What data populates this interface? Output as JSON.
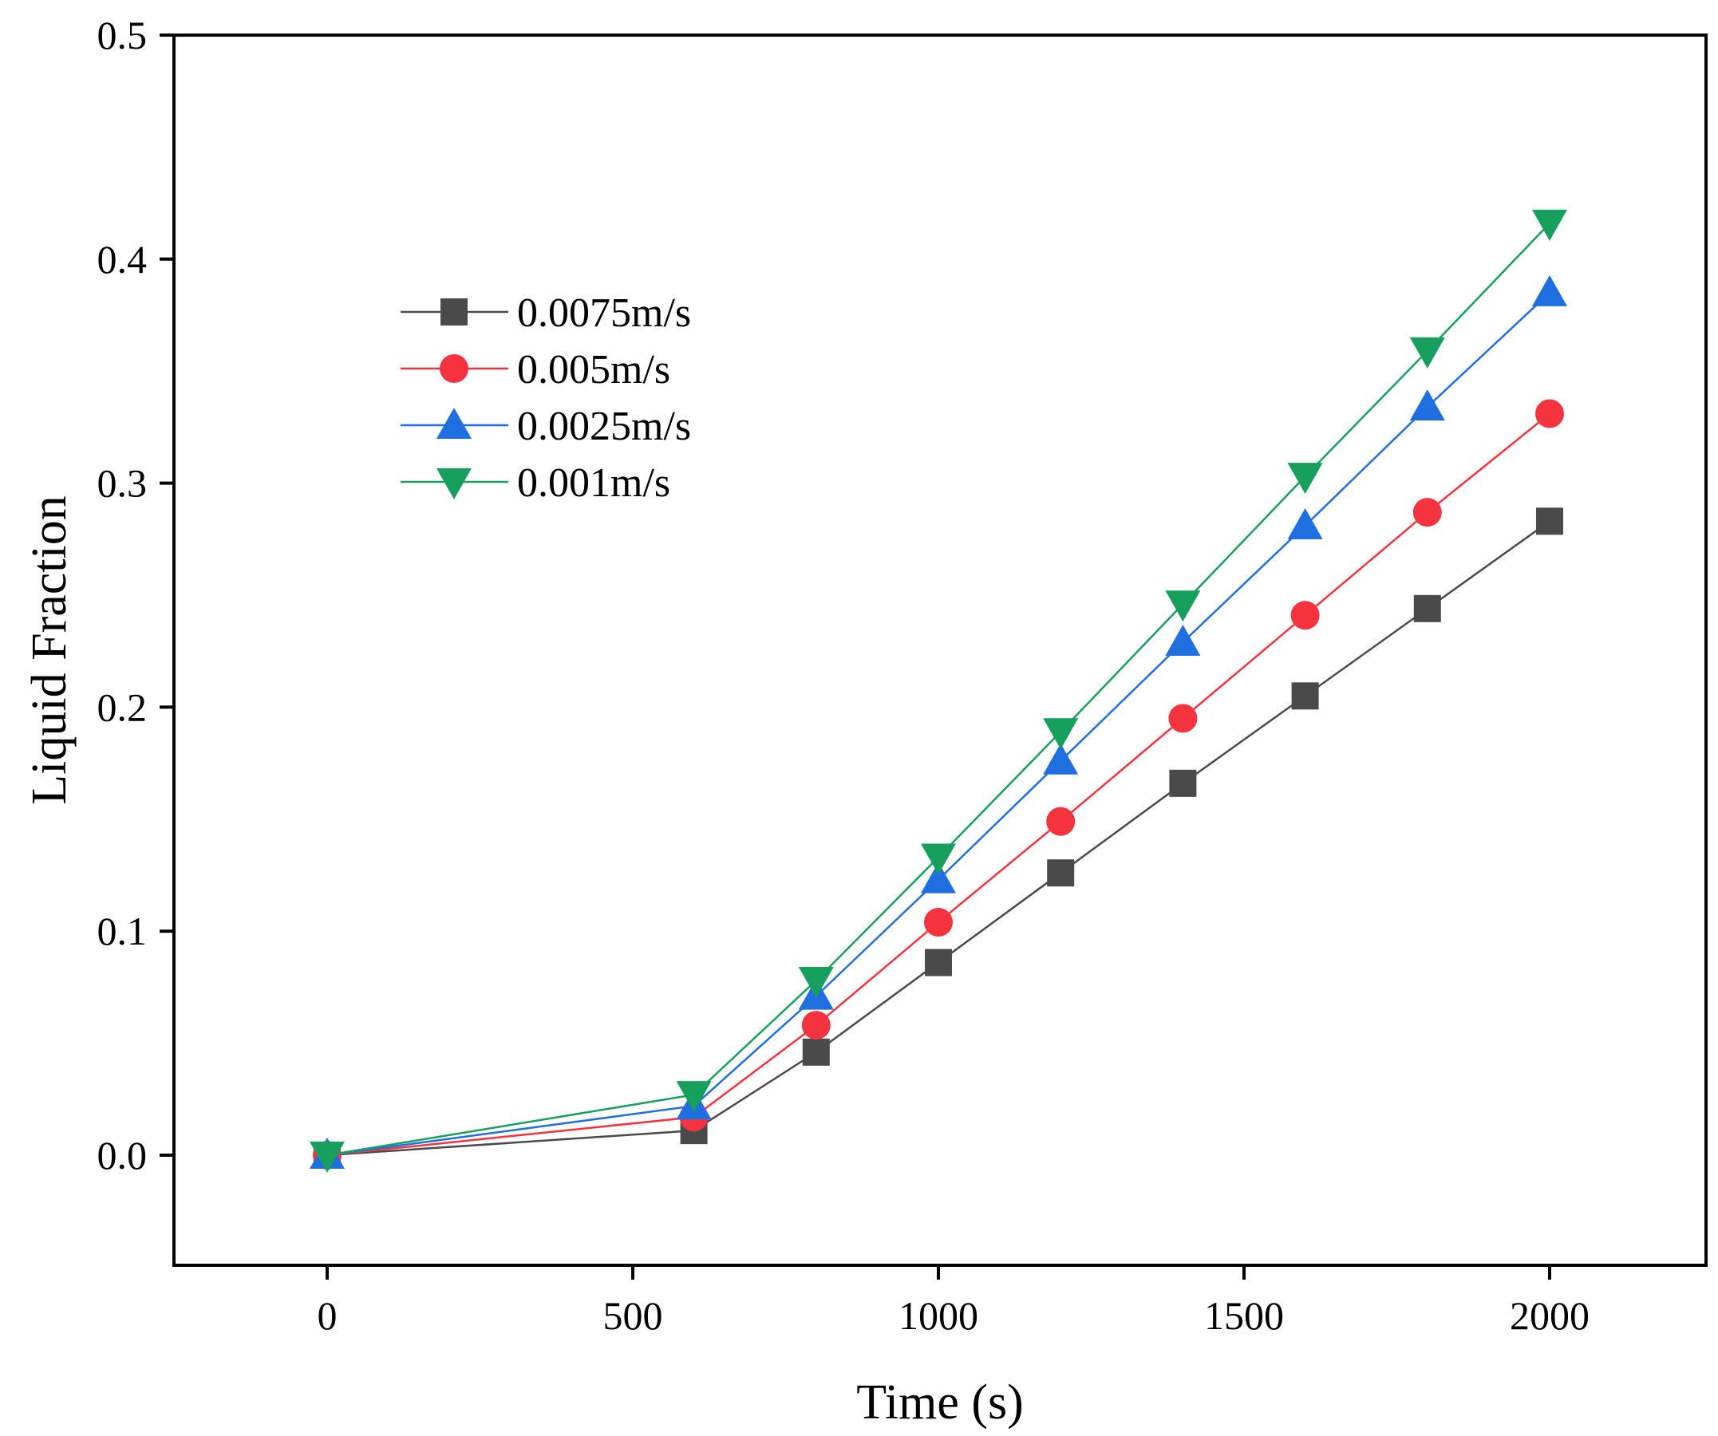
{
  "chart_data": {
    "type": "line",
    "xlabel": "Time (s)",
    "ylabel": "Liquid Fraction",
    "xlim": [
      -250,
      2250
    ],
    "ylim": [
      -0.05,
      0.5
    ],
    "xticks": [
      0,
      500,
      1000,
      1500,
      2000
    ],
    "yticks": [
      0.0,
      0.1,
      0.2,
      0.3,
      0.4,
      0.5
    ],
    "xtick_labels": [
      "0",
      "500",
      "1000",
      "1500",
      "2000"
    ],
    "ytick_labels": [
      "0.0",
      "0.1",
      "0.2",
      "0.3",
      "0.4",
      "0.5"
    ],
    "grid": false,
    "legend_position": "upper-left",
    "x": [
      0,
      600,
      800,
      1000,
      1200,
      1400,
      1600,
      1800,
      2000
    ],
    "series": [
      {
        "name": "0.0075m/s",
        "marker": "square",
        "color": "#4a4a4a",
        "values": [
          0.0,
          0.011,
          0.046,
          0.086,
          0.126,
          0.166,
          0.205,
          0.244,
          0.283
        ]
      },
      {
        "name": "0.005m/s",
        "marker": "circle",
        "color": "#f5333f",
        "values": [
          0.0,
          0.017,
          0.058,
          0.104,
          0.149,
          0.195,
          0.241,
          0.287,
          0.331
        ]
      },
      {
        "name": "0.0025m/s",
        "marker": "triangle-up",
        "color": "#1f6fe0",
        "values": [
          0.0,
          0.022,
          0.071,
          0.123,
          0.176,
          0.229,
          0.281,
          0.334,
          0.385
        ]
      },
      {
        "name": "0.001m/s",
        "marker": "triangle-down",
        "color": "#17a05d",
        "values": [
          0.0,
          0.027,
          0.078,
          0.133,
          0.189,
          0.246,
          0.303,
          0.359,
          0.416
        ]
      }
    ]
  }
}
